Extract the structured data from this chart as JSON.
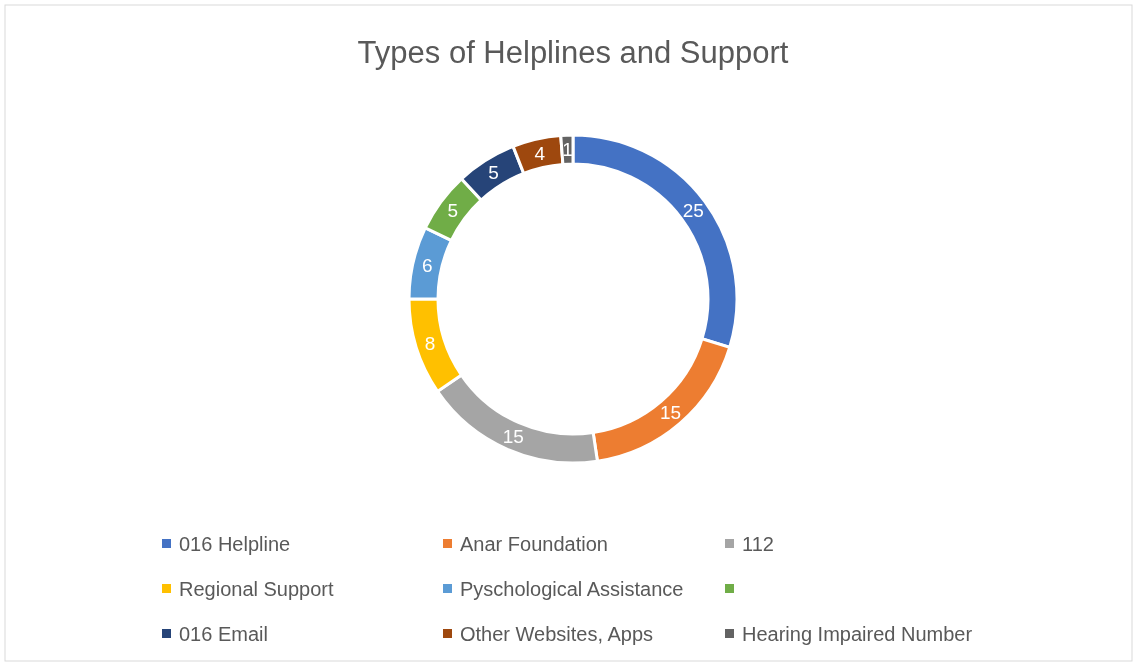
{
  "chart_data": {
    "type": "donut",
    "title": "Types of Helplines and Support",
    "categories": [
      "016 Helpline",
      "Anar Foundation",
      "112",
      "Regional Support",
      "Pyschological Assistance",
      null,
      "016 Email",
      "Other Websites, Apps",
      "Hearing Impaired Number"
    ],
    "values": [
      25,
      15,
      15,
      8,
      6,
      5,
      5,
      4,
      1
    ],
    "colors": [
      "#4472c4",
      "#ed7d31",
      "#a5a5a5",
      "#ffc000",
      "#5b9bd5",
      "#70ad47",
      "#264478",
      "#9e480e",
      "#636363"
    ],
    "data_labels": true,
    "legend": "bottom"
  }
}
